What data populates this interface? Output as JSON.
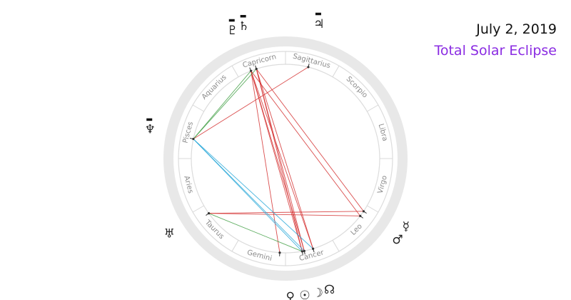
{
  "header": {
    "date": "July 2, 2019",
    "event": "Total Solar Eclipse",
    "event_color": "#8a2be2"
  },
  "signs": [
    "Aries",
    "Taurus",
    "Gemini",
    "Cancer",
    "Leo",
    "Virgo",
    "Libra",
    "Scorpio",
    "Sagittarius",
    "Capricorn",
    "Aquarius",
    "Pisces"
  ],
  "planets": [
    {
      "name": "Sun",
      "glyph": "☉",
      "longitude": 100.2,
      "retrograde": false
    },
    {
      "name": "Moon",
      "glyph": "☽",
      "longitude": 101.5,
      "retrograde": false
    },
    {
      "name": "Mercury",
      "glyph": "☿",
      "longitude": 146.0,
      "retrograde": false
    },
    {
      "name": "Venus",
      "glyph": "♀",
      "longitude": 86.5,
      "retrograde": false
    },
    {
      "name": "Mars",
      "glyph": "♂",
      "longitude": 142.5,
      "retrograde": false
    },
    {
      "name": "Jupiter",
      "glyph": "♃",
      "longitude": 256.0,
      "retrograde": true
    },
    {
      "name": "Saturn",
      "glyph": "♄",
      "longitude": 288.0,
      "retrograde": true
    },
    {
      "name": "Uranus",
      "glyph": "♅",
      "longitude": 35.5,
      "retrograde": false
    },
    {
      "name": "Neptune",
      "glyph": "♆",
      "longitude": 348.0,
      "retrograde": true
    },
    {
      "name": "Pluto",
      "glyph": "♇",
      "longitude": 291.5,
      "retrograde": true
    },
    {
      "name": "North Node",
      "glyph": "☊",
      "longitude": 107.0,
      "retrograde": false
    }
  ],
  "aspects": [
    {
      "from": "Sun",
      "to": "Saturn",
      "color": "#d32f2f"
    },
    {
      "from": "Sun",
      "to": "Pluto",
      "color": "#d32f2f"
    },
    {
      "from": "Moon",
      "to": "Saturn",
      "color": "#d32f2f"
    },
    {
      "from": "Moon",
      "to": "Pluto",
      "color": "#d32f2f"
    },
    {
      "from": "North Node",
      "to": "Saturn",
      "color": "#d32f2f"
    },
    {
      "from": "North Node",
      "to": "Pluto",
      "color": "#d32f2f"
    },
    {
      "from": "Venus",
      "to": "Pluto",
      "color": "#d32f2f"
    },
    {
      "from": "Mercury",
      "to": "Saturn",
      "color": "#d32f2f"
    },
    {
      "from": "Mars",
      "to": "Pluto",
      "color": "#d32f2f"
    },
    {
      "from": "Mercury",
      "to": "Uranus",
      "color": "#d32f2f"
    },
    {
      "from": "Mars",
      "to": "Uranus",
      "color": "#d32f2f"
    },
    {
      "from": "Neptune",
      "to": "Jupiter",
      "color": "#d32f2f"
    },
    {
      "from": "Neptune",
      "to": "Saturn",
      "color": "#43a047"
    },
    {
      "from": "Neptune",
      "to": "Pluto",
      "color": "#43a047"
    },
    {
      "from": "Uranus",
      "to": "Sun",
      "color": "#43a047"
    },
    {
      "from": "Neptune",
      "to": "Sun",
      "color": "#29a8d8"
    },
    {
      "from": "Neptune",
      "to": "Moon",
      "color": "#29a8d8"
    },
    {
      "from": "Neptune",
      "to": "North Node",
      "color": "#29a8d8"
    }
  ]
}
